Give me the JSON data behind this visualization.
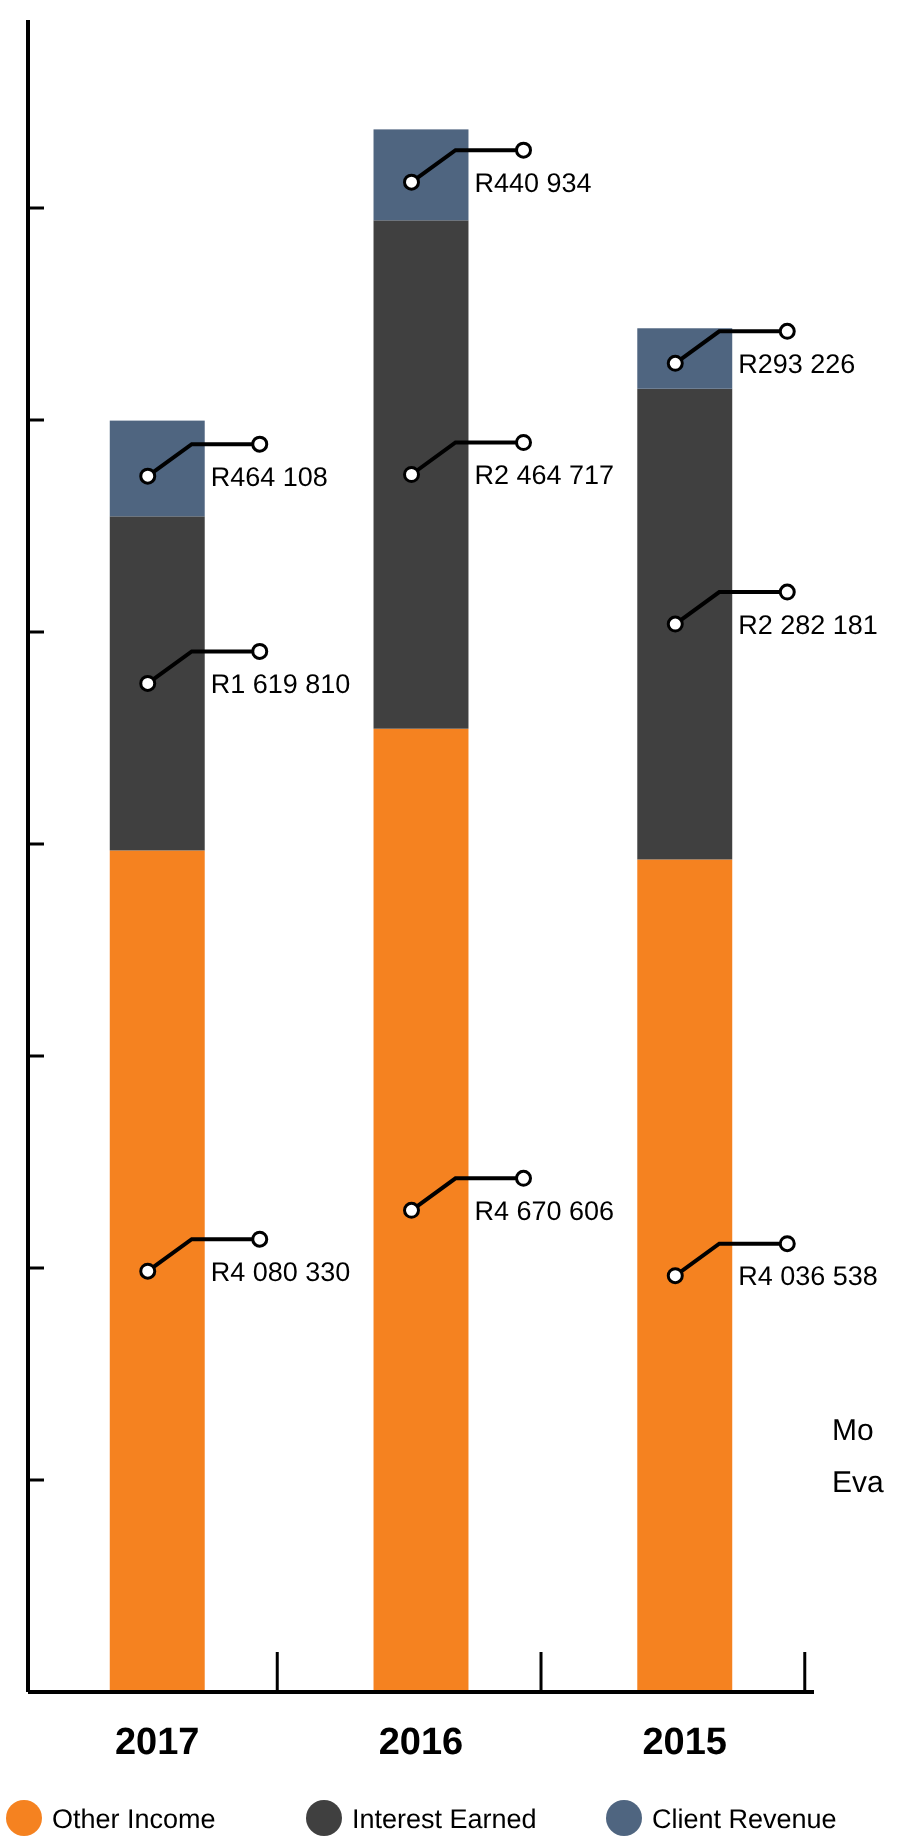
{
  "chart_data": {
    "type": "bar",
    "stacked": true,
    "categories": [
      "2017",
      "2016",
      "2015"
    ],
    "series": [
      {
        "name": "Other Income",
        "color": "#f58220",
        "values": [
          4080330,
          4670606,
          4036538
        ],
        "value_labels": [
          "R4 080 330",
          "R4 670 606",
          "R4 036 538"
        ]
      },
      {
        "name": "Interest Earned",
        "color": "#404040",
        "values": [
          1619810,
          2464717,
          2282181
        ],
        "value_labels": [
          "R1 619 810",
          "R2 464 717",
          "R2 282 181"
        ]
      },
      {
        "name": "Client Revenue",
        "color": "#4f6580",
        "values": [
          464108,
          440934,
          293226
        ],
        "value_labels": [
          "R464 108",
          "R440 934",
          "R293 226"
        ]
      }
    ],
    "tick_labels": "x",
    "legend": "bottom",
    "annotations": [
      "Mo",
      "Eva"
    ]
  }
}
